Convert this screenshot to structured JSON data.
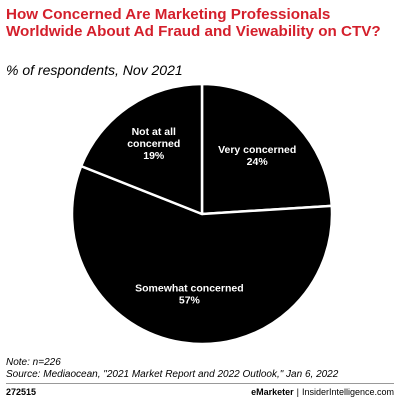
{
  "chart_data": {
    "type": "pie",
    "title": "How Concerned Are Marketing Professionals Worldwide About Ad Fraud and Viewability on CTV?",
    "subtitle": "% of respondents, Nov 2021",
    "slices": [
      {
        "name_lines": [
          "Very concerned"
        ],
        "value_text": "24%",
        "value": 24
      },
      {
        "name_lines": [
          "Somewhat concerned"
        ],
        "value_text": "57%",
        "value": 57
      },
      {
        "name_lines": [
          "Not at all",
          "concerned"
        ],
        "value_text": "19%",
        "value": 19
      }
    ],
    "slice_color": "#000000",
    "separator_color": "#ffffff",
    "label_color": "#ffffff"
  },
  "note": "Note: n=226",
  "source": "Source: Mediaocean, \"2021 Market Report and 2022 Outlook,\" Jan 6, 2022",
  "footer": {
    "chart_id": "272515",
    "brand": "eMarketer",
    "separator": "|",
    "site": "InsiderIntelligence.com"
  },
  "colors": {
    "title": "#d41f2b",
    "text": "#000000"
  }
}
